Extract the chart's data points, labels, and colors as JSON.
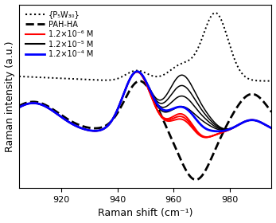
{
  "xlabel": "Raman shift (cm⁻¹)",
  "ylabel": "Raman intensity (a.u.)",
  "xmin": 905,
  "xmax": 995,
  "legend": [
    {
      "label": "{P₅W₃₀}",
      "color": "black",
      "linestyle": "dotted",
      "linewidth": 1.5
    },
    {
      "label": "PAH-HA",
      "color": "black",
      "linestyle": "dashed",
      "linewidth": 2.0
    },
    {
      "label": "1.2×10⁻⁶ M",
      "color": "red",
      "linestyle": "solid",
      "linewidth": 1.5
    },
    {
      "label": "1.2×10⁻⁵ M",
      "color": "black",
      "linestyle": "solid",
      "linewidth": 1.5
    },
    {
      "label": "1.2×10⁻⁴ M",
      "color": "blue",
      "linestyle": "solid",
      "linewidth": 2.0
    }
  ]
}
